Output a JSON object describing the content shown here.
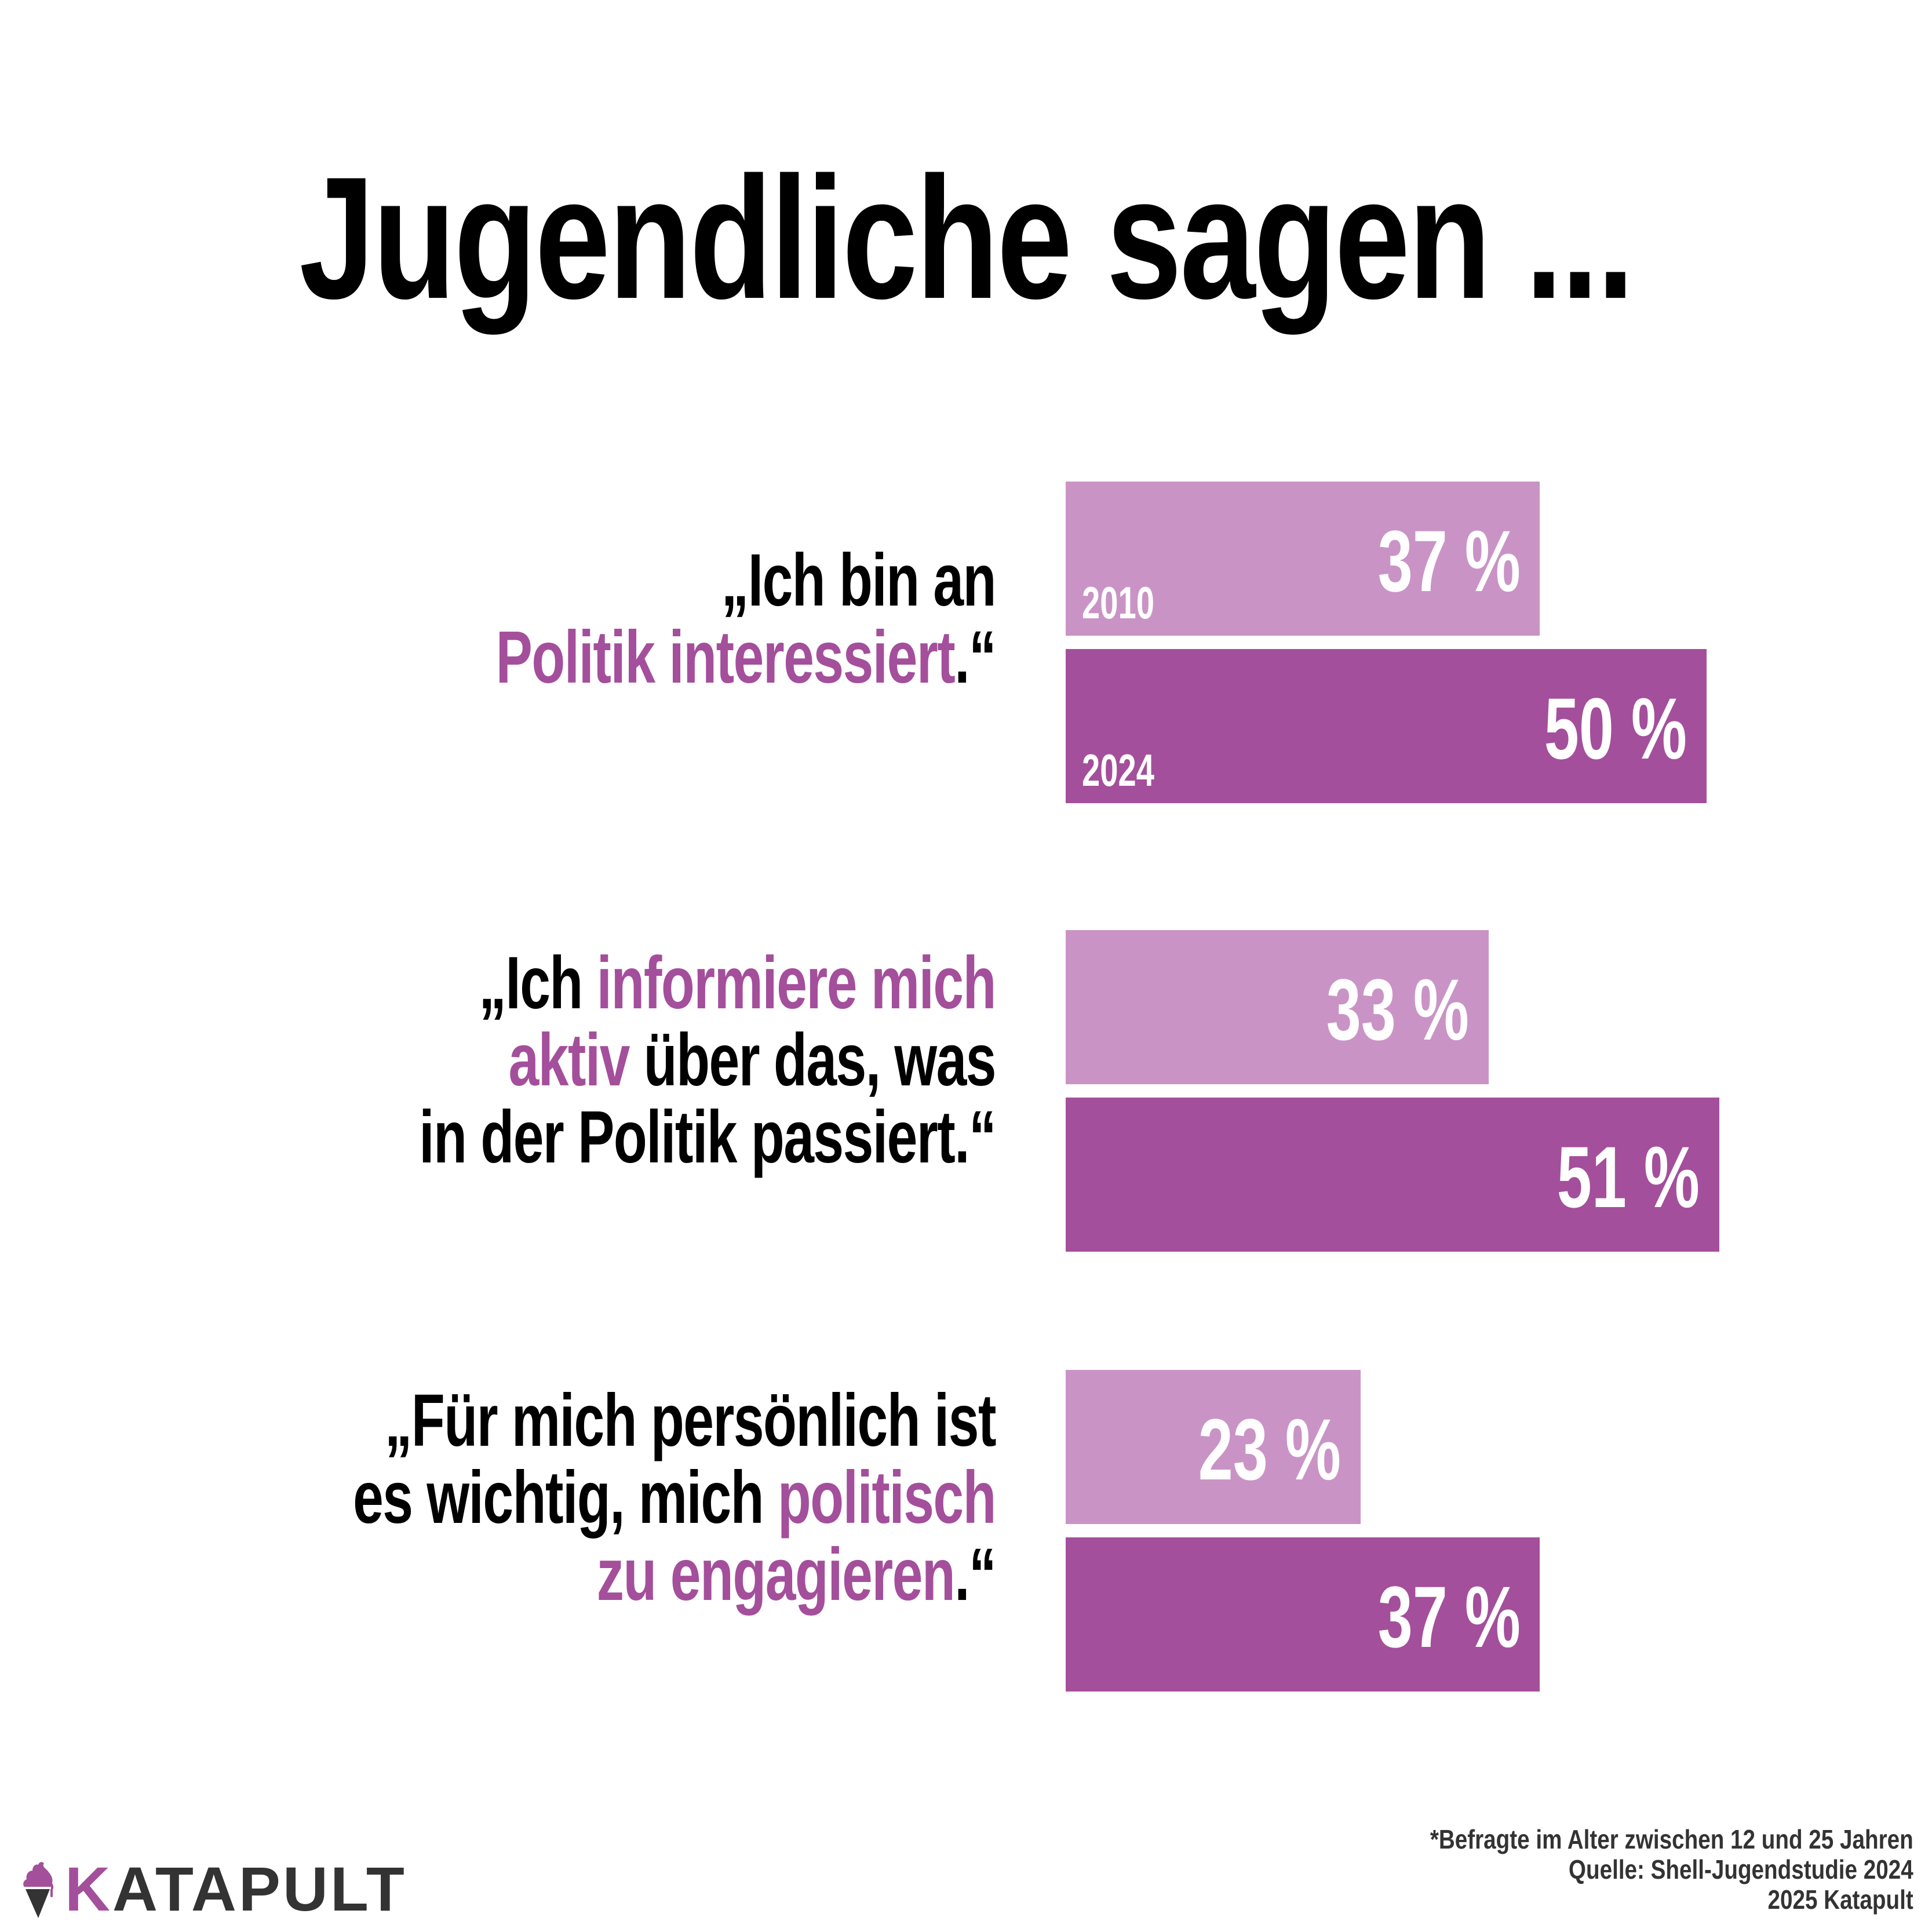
{
  "title": "Jugendliche sagen ...",
  "colors": {
    "year_2010": "#c994c5",
    "year_2024": "#a44f9b",
    "highlight": "#a44f9b",
    "text": "#000000",
    "footer_text": "#333333"
  },
  "quotes": [
    {
      "lines": [
        [
          {
            "text": "„Ich bin an",
            "hl": false
          }
        ],
        [
          {
            "text": "Politik interessiert",
            "hl": true
          },
          {
            "text": ".“",
            "hl": false
          }
        ]
      ]
    },
    {
      "lines": [
        [
          {
            "text": "„Ich ",
            "hl": false
          },
          {
            "text": "informiere mich",
            "hl": true
          }
        ],
        [
          {
            "text": "aktiv",
            "hl": true
          },
          {
            "text": " über das, was",
            "hl": false
          }
        ],
        [
          {
            "text": "in der Politik passiert.“",
            "hl": false
          }
        ]
      ]
    },
    {
      "lines": [
        [
          {
            "text": "„Für mich persönlich ist",
            "hl": false
          }
        ],
        [
          {
            "text": "es wichtig, mich ",
            "hl": false
          },
          {
            "text": "politisch",
            "hl": true
          }
        ],
        [
          {
            "text": "zu engagieren",
            "hl": true
          },
          {
            "text": ".“",
            "hl": false
          }
        ]
      ]
    }
  ],
  "chart_data": {
    "type": "bar",
    "orientation": "horizontal",
    "title": "Jugendliche sagen ...",
    "categories": [
      "„Ich bin an Politik interessiert.“",
      "„Ich informiere mich aktiv über das, was in der Politik passiert.“",
      "„Für mich persönlich ist es wichtig, mich politisch zu engagieren.“"
    ],
    "series": [
      {
        "name": "2010",
        "values": [
          37,
          33,
          23
        ],
        "labels": [
          "37 %",
          "33 %",
          "23 %"
        ]
      },
      {
        "name": "2024",
        "values": [
          50,
          51,
          37
        ],
        "labels": [
          "50 %",
          "51 %",
          "37 %"
        ]
      }
    ],
    "year_labels_shown_on_first_group": [
      "2010",
      "2024"
    ],
    "unit": "%",
    "xlim": [
      0,
      100
    ],
    "grid": false,
    "legend": "none"
  },
  "logo": {
    "text_first": "K",
    "text_rest": "ATAPULT",
    "icon": "ice-cream-icon"
  },
  "footer": {
    "lines": [
      "*Befragte im Alter zwischen 12 und 25 Jahren",
      "Quelle: Shell-Jugendstudie 2024",
      "2025 Katapult"
    ]
  }
}
